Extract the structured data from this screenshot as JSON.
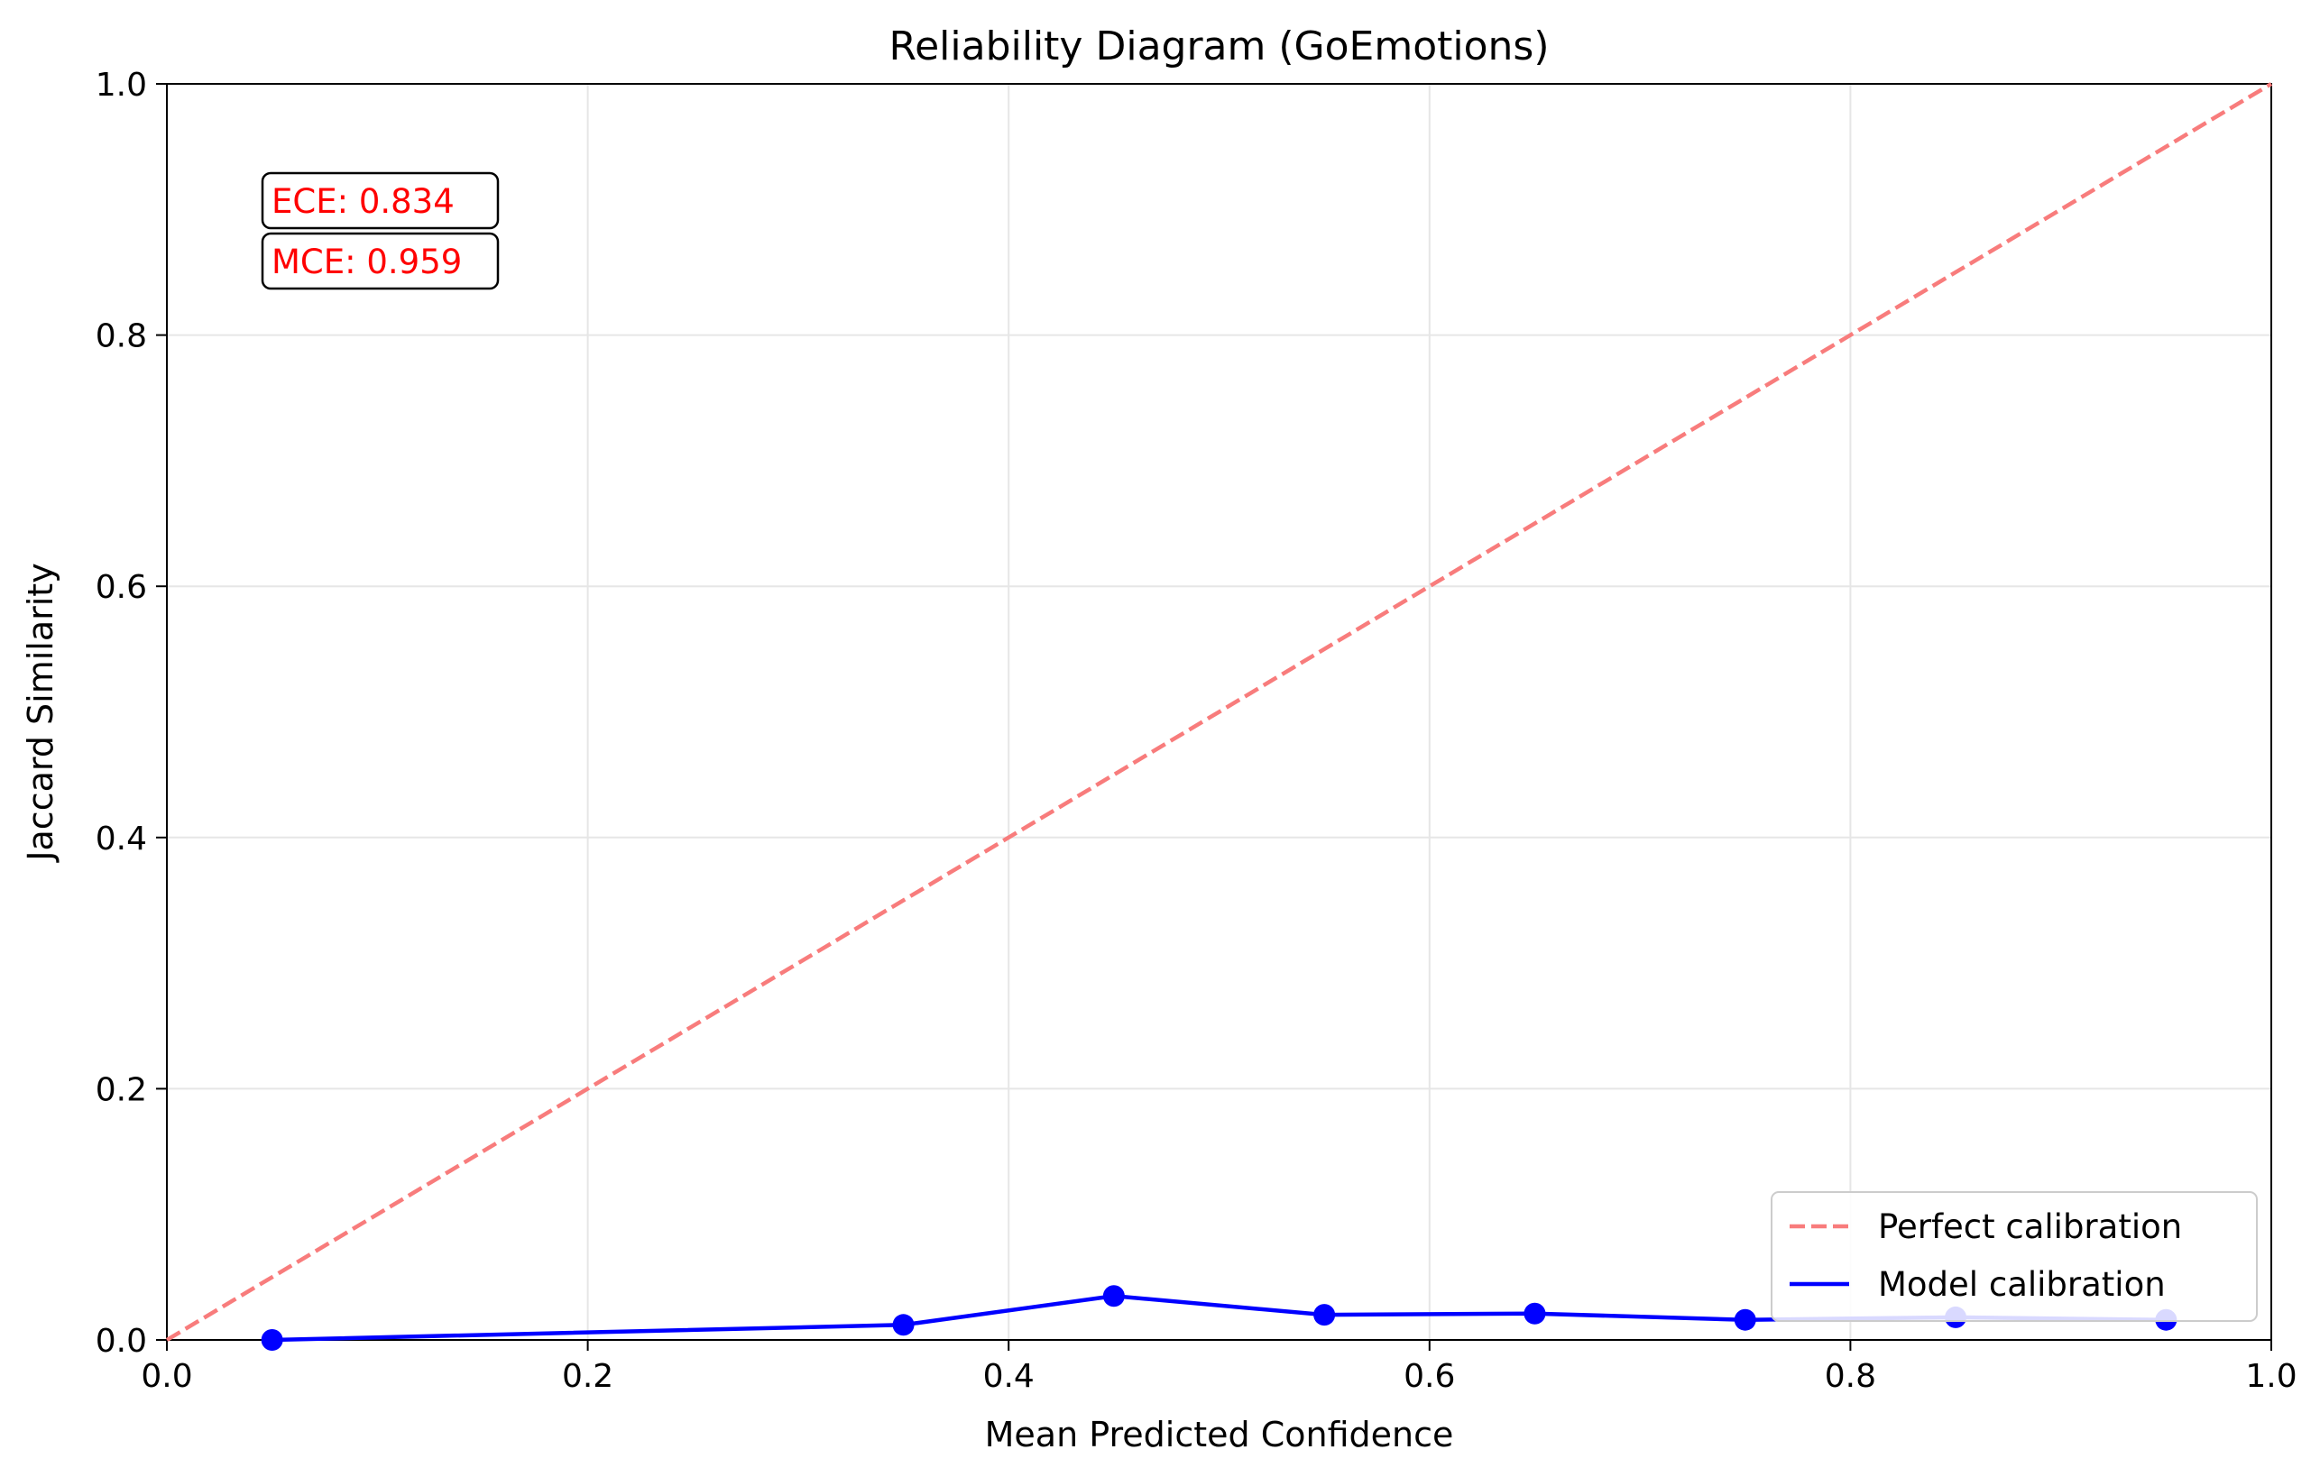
{
  "chart_data": {
    "type": "line",
    "title": "Reliability Diagram (GoEmotions)",
    "xlabel": "Mean Predicted Confidence",
    "ylabel": "Jaccard Similarity",
    "xlim": [
      0.0,
      1.0
    ],
    "ylim": [
      0.0,
      1.0
    ],
    "xticks": [
      0.0,
      0.2,
      0.4,
      0.6,
      0.8,
      1.0
    ],
    "yticks": [
      0.0,
      0.2,
      0.4,
      0.6,
      0.8,
      1.0
    ],
    "xtick_labels": [
      "0.0",
      "0.2",
      "0.4",
      "0.6",
      "0.8",
      "1.0"
    ],
    "ytick_labels": [
      "0.0",
      "0.2",
      "0.4",
      "0.6",
      "0.8",
      "1.0"
    ],
    "grid": true,
    "legend_position": "bottom-right",
    "series": [
      {
        "name": "Perfect calibration",
        "style": "dashed",
        "color": "#f87c7c",
        "x": [
          0.0,
          1.0
        ],
        "y": [
          0.0,
          1.0
        ]
      },
      {
        "name": "Model calibration",
        "style": "solid-with-markers",
        "color": "#0000ff",
        "x": [
          0.05,
          0.35,
          0.45,
          0.55,
          0.65,
          0.75,
          0.85,
          0.95
        ],
        "y": [
          0.0,
          0.012,
          0.035,
          0.02,
          0.021,
          0.016,
          0.018,
          0.016
        ]
      }
    ],
    "annotations": [
      {
        "text": "ECE: 0.834",
        "color": "#ff0000"
      },
      {
        "text": "MCE: 0.959",
        "color": "#ff0000"
      }
    ]
  }
}
